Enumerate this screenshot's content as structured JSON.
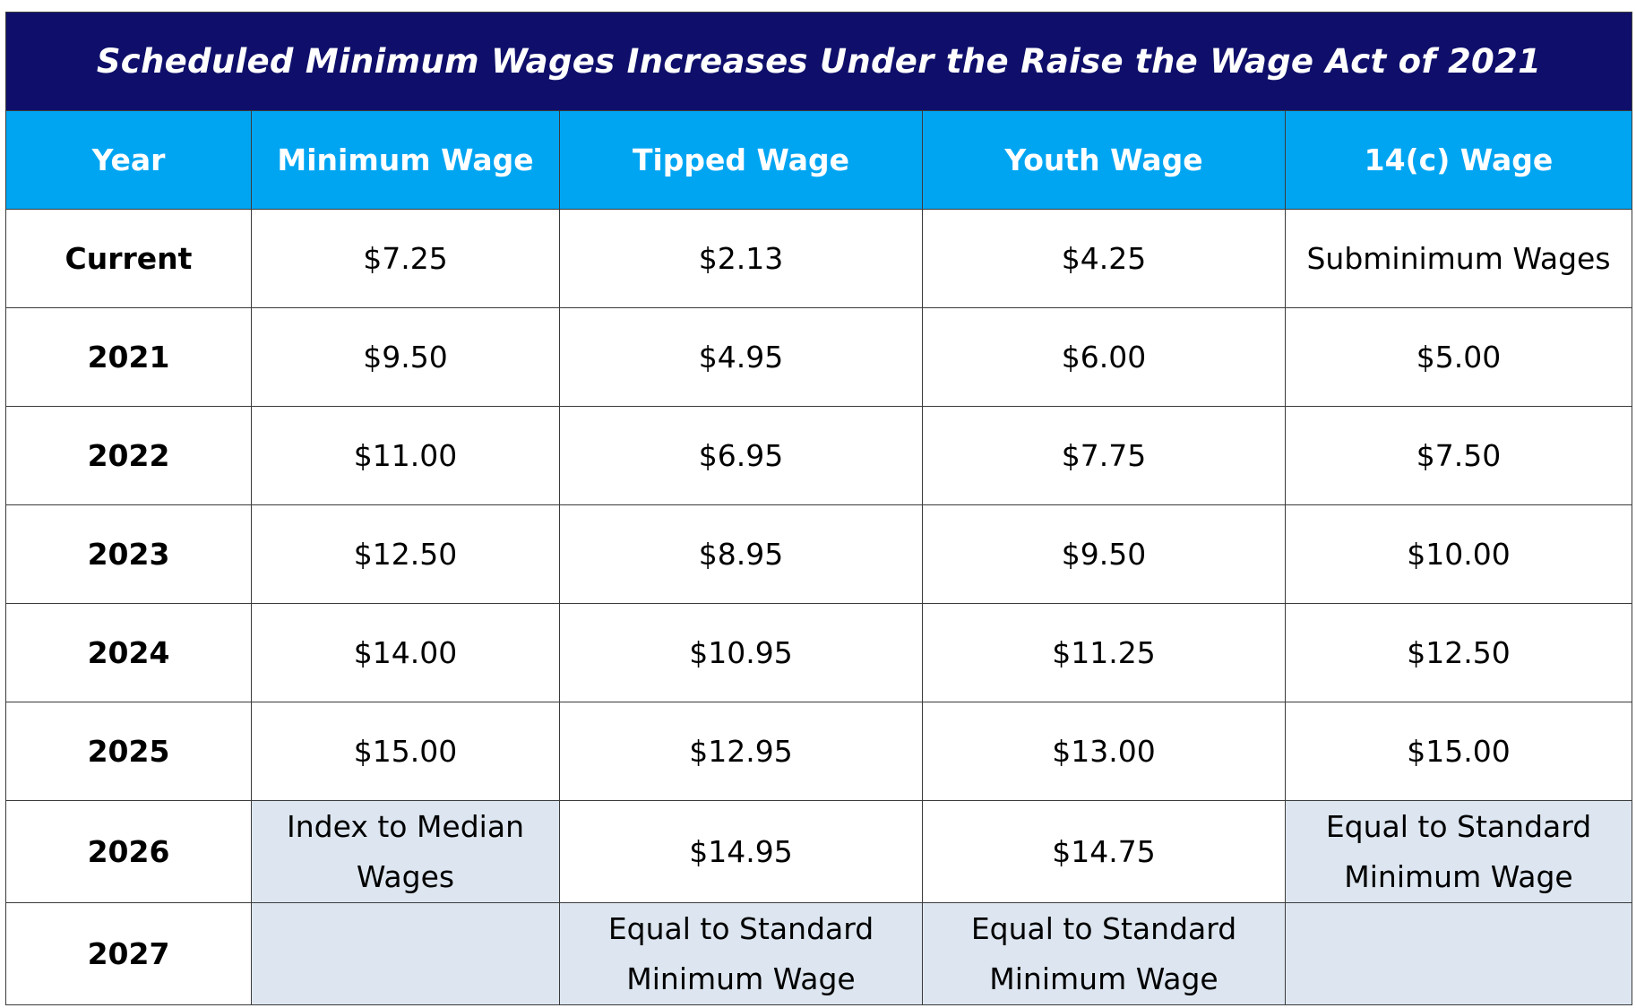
{
  "table": {
    "title": "Scheduled Minimum Wages Increases Under the Raise the Wage Act of 2021",
    "headers": [
      "Year",
      "Minimum Wage",
      "Tipped Wage",
      "Youth Wage",
      "14(c) Wage"
    ],
    "rows": [
      {
        "year": "Current",
        "minimum": "$7.25",
        "tipped": "$2.13",
        "youth": "$4.25",
        "c14": "Subminimum Wages"
      },
      {
        "year": "2021",
        "minimum": "$9.50",
        "tipped": "$4.95",
        "youth": "$6.00",
        "c14": "$5.00"
      },
      {
        "year": "2022",
        "minimum": "$11.00",
        "tipped": "$6.95",
        "youth": "$7.75",
        "c14": "$7.50"
      },
      {
        "year": "2023",
        "minimum": "$12.50",
        "tipped": "$8.95",
        "youth": "$9.50",
        "c14": "$10.00"
      },
      {
        "year": "2024",
        "minimum": "$14.00",
        "tipped": "$10.95",
        "youth": "$11.25",
        "c14": "$12.50"
      },
      {
        "year": "2025",
        "minimum": "$15.00",
        "tipped": "$12.95",
        "youth": "$13.00",
        "c14": "$15.00"
      },
      {
        "year": "2026",
        "minimum": "Index to Median Wages",
        "tipped": "$14.95",
        "youth": "$14.75",
        "c14": "Equal to Standard Minimum Wage"
      },
      {
        "year": "2027",
        "minimum": "",
        "tipped": "Equal to Standard Minimum Wage",
        "youth": "Equal to Standard Minimum Wage",
        "c14": ""
      }
    ]
  },
  "colors": {
    "title_background": "#0f0f6b",
    "header_background": "#00a5f2",
    "shaded_cell": "#dde6f0",
    "border": "#3a3a3a"
  }
}
